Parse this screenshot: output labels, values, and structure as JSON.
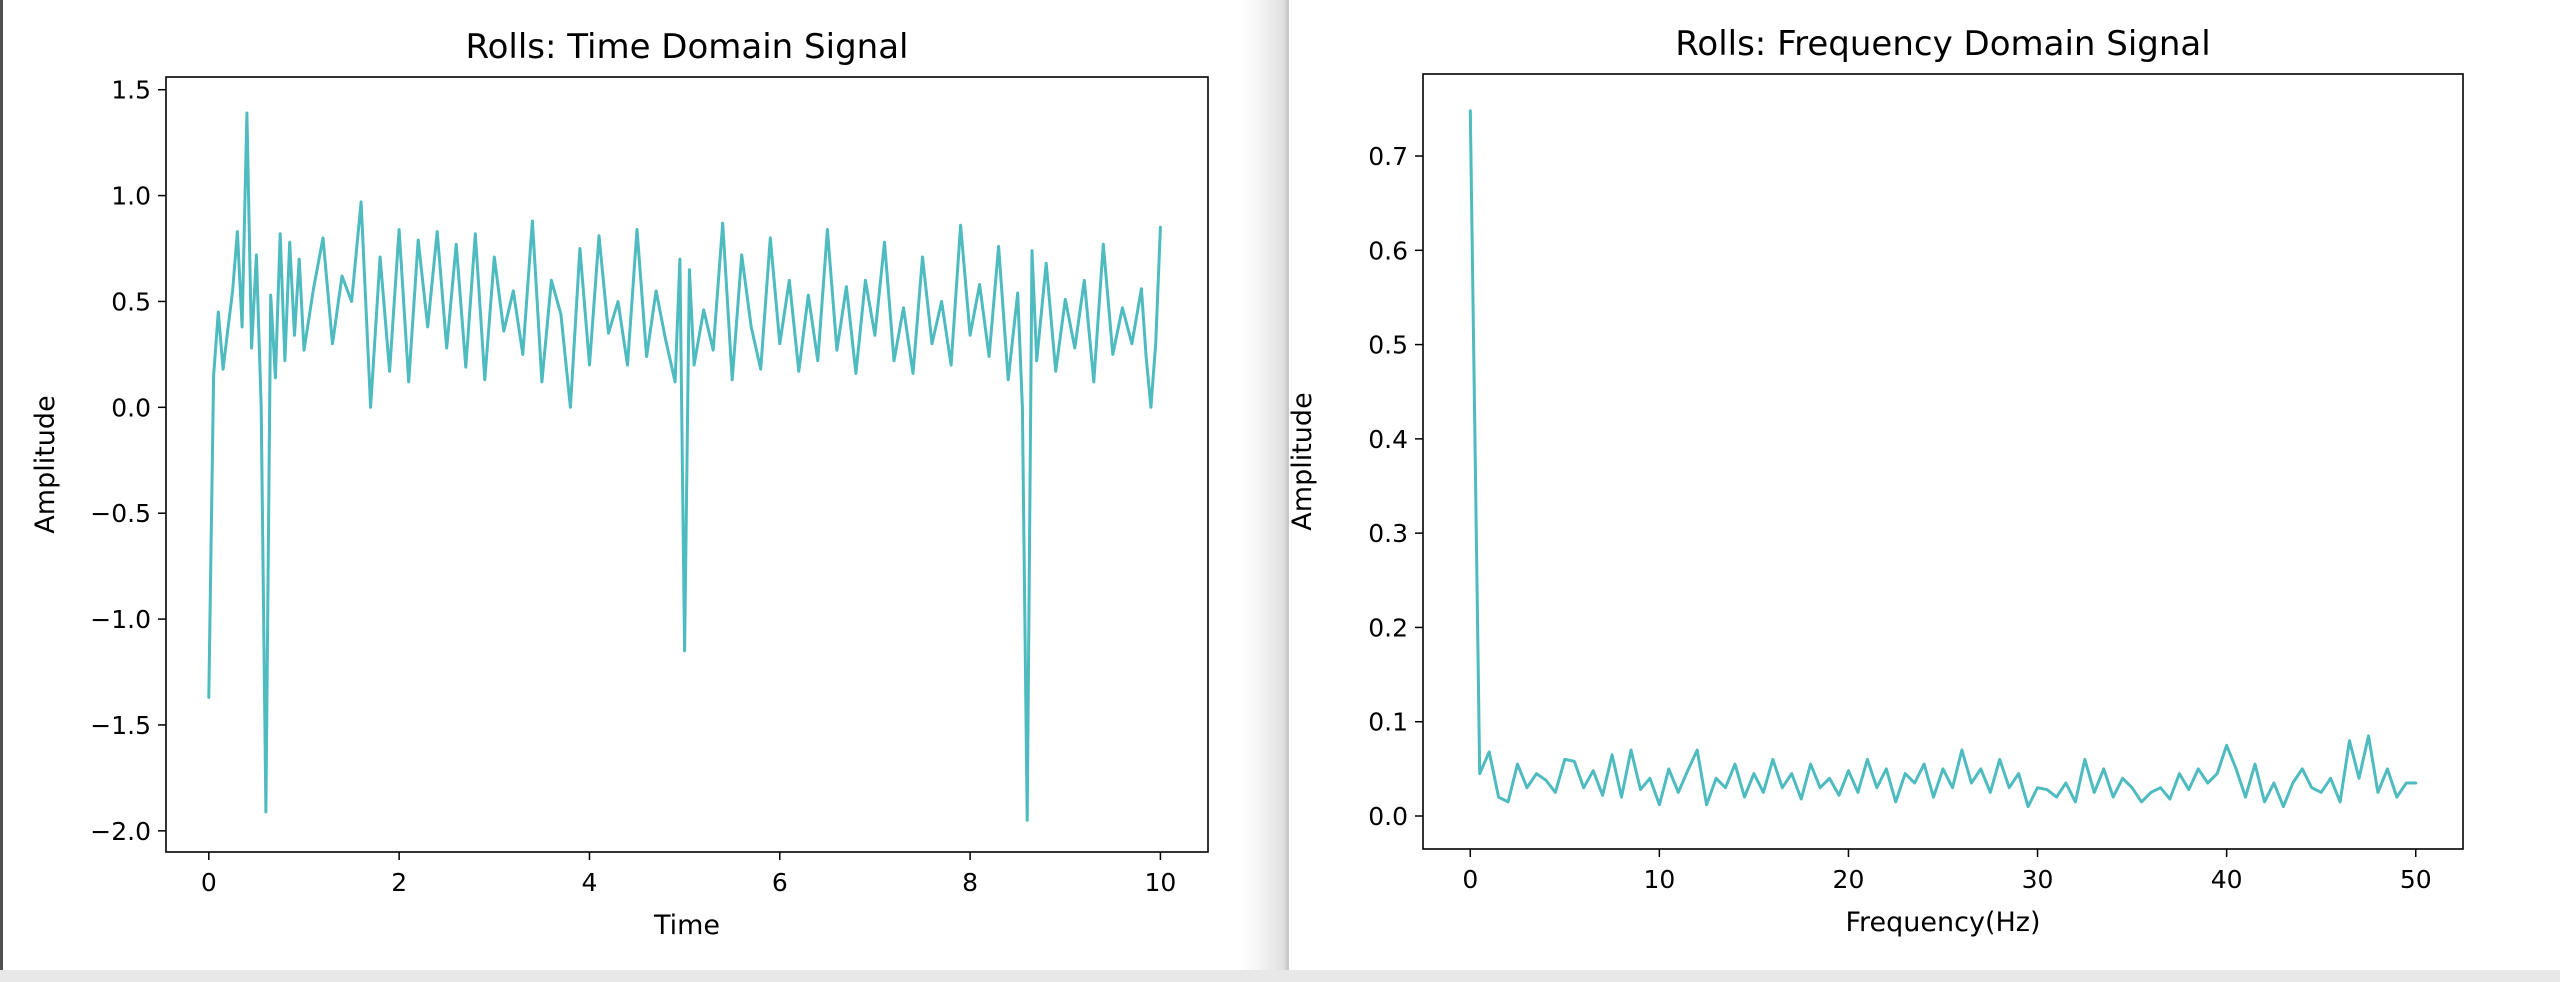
{
  "chart_data": [
    {
      "type": "line",
      "title": "Rolls: Time Domain Signal",
      "xlabel": "Time",
      "ylabel": "Amplitude",
      "xlim": [
        -0.45,
        10.5
      ],
      "ylim": [
        -2.1,
        1.56
      ],
      "xticks": [
        0,
        2,
        4,
        6,
        8,
        10
      ],
      "xtick_labels": [
        "0",
        "2",
        "4",
        "6",
        "8",
        "10"
      ],
      "yticks": [
        1.5,
        1.0,
        0.5,
        0.0,
        -0.5,
        -1.0,
        -1.5,
        -2.0
      ],
      "ytick_labels": [
        "1.5",
        "1.0",
        "0.5",
        "0.0",
        "−0.5",
        "−1.0",
        "−1.5",
        "−2.0"
      ],
      "color": "#4dbbbf",
      "grid": false,
      "series": [
        {
          "x": [
            0.0,
            0.05,
            0.1,
            0.15,
            0.2,
            0.25,
            0.3,
            0.35,
            0.4,
            0.45,
            0.5,
            0.55,
            0.6,
            0.65,
            0.7,
            0.75,
            0.8,
            0.85,
            0.9,
            0.95,
            1.0,
            1.1,
            1.2,
            1.3,
            1.4,
            1.5,
            1.6,
            1.7,
            1.8,
            1.9,
            2.0,
            2.1,
            2.2,
            2.3,
            2.4,
            2.5,
            2.6,
            2.7,
            2.8,
            2.9,
            3.0,
            3.1,
            3.2,
            3.3,
            3.4,
            3.5,
            3.6,
            3.7,
            3.8,
            3.9,
            4.0,
            4.1,
            4.2,
            4.3,
            4.4,
            4.5,
            4.6,
            4.7,
            4.8,
            4.9,
            4.95,
            5.0,
            5.05,
            5.1,
            5.2,
            5.3,
            5.4,
            5.5,
            5.6,
            5.7,
            5.8,
            5.9,
            6.0,
            6.1,
            6.2,
            6.3,
            6.4,
            6.5,
            6.6,
            6.7,
            6.8,
            6.9,
            7.0,
            7.1,
            7.2,
            7.3,
            7.4,
            7.5,
            7.6,
            7.7,
            7.8,
            7.9,
            8.0,
            8.1,
            8.2,
            8.3,
            8.4,
            8.5,
            8.55,
            8.6,
            8.65,
            8.7,
            8.8,
            8.9,
            9.0,
            9.1,
            9.2,
            9.3,
            9.4,
            9.5,
            9.6,
            9.7,
            9.8,
            9.85,
            9.9,
            9.95,
            10.0
          ],
          "y": [
            -1.37,
            0.15,
            0.45,
            0.18,
            0.37,
            0.55,
            0.83,
            0.38,
            1.39,
            0.28,
            0.72,
            0.0,
            -1.91,
            0.53,
            0.14,
            0.82,
            0.22,
            0.78,
            0.34,
            0.7,
            0.27,
            0.56,
            0.8,
            0.3,
            0.62,
            0.5,
            0.97,
            0.0,
            0.71,
            0.17,
            0.84,
            0.12,
            0.79,
            0.38,
            0.83,
            0.28,
            0.77,
            0.19,
            0.82,
            0.13,
            0.71,
            0.36,
            0.55,
            0.25,
            0.88,
            0.12,
            0.6,
            0.44,
            0.0,
            0.75,
            0.2,
            0.81,
            0.35,
            0.5,
            0.2,
            0.84,
            0.24,
            0.55,
            0.32,
            0.12,
            0.7,
            -1.15,
            0.65,
            0.2,
            0.46,
            0.27,
            0.87,
            0.13,
            0.72,
            0.38,
            0.18,
            0.8,
            0.3,
            0.6,
            0.17,
            0.53,
            0.22,
            0.84,
            0.27,
            0.57,
            0.16,
            0.6,
            0.34,
            0.78,
            0.22,
            0.47,
            0.16,
            0.71,
            0.3,
            0.5,
            0.2,
            0.86,
            0.34,
            0.58,
            0.24,
            0.76,
            0.13,
            0.54,
            0.0,
            -1.95,
            0.74,
            0.22,
            0.68,
            0.17,
            0.51,
            0.28,
            0.6,
            0.12,
            0.77,
            0.25,
            0.47,
            0.3,
            0.56,
            0.24,
            0.0,
            0.3,
            0.85
          ]
        }
      ]
    },
    {
      "type": "line",
      "title": "Rolls: Frequency Domain Signal",
      "xlabel": "Frequency(Hz)",
      "ylabel": "Amplitude",
      "xlim": [
        -2.5,
        52.5
      ],
      "ylim": [
        -0.035,
        0.787
      ],
      "xticks": [
        0,
        10,
        20,
        30,
        40,
        50
      ],
      "xtick_labels": [
        "0",
        "10",
        "20",
        "30",
        "40",
        "50"
      ],
      "yticks": [
        0.7,
        0.6,
        0.5,
        0.4,
        0.3,
        0.2,
        0.1,
        0.0
      ],
      "ytick_labels": [
        "0.7",
        "0.6",
        "0.5",
        "0.4",
        "0.3",
        "0.2",
        "0.1",
        "0.0"
      ],
      "color": "#4dbbbf",
      "grid": false,
      "series": [
        {
          "x": [
            0.0,
            0.5,
            1.0,
            1.5,
            2.0,
            2.5,
            3.0,
            3.5,
            4.0,
            4.5,
            5.0,
            5.5,
            6.0,
            6.5,
            7.0,
            7.5,
            8.0,
            8.5,
            9.0,
            9.5,
            10.0,
            10.5,
            11.0,
            11.5,
            12.0,
            12.5,
            13.0,
            13.5,
            14.0,
            14.5,
            15.0,
            15.5,
            16.0,
            16.5,
            17.0,
            17.5,
            18.0,
            18.5,
            19.0,
            19.5,
            20.0,
            20.5,
            21.0,
            21.5,
            22.0,
            22.5,
            23.0,
            23.5,
            24.0,
            24.5,
            25.0,
            25.5,
            26.0,
            26.5,
            27.0,
            27.5,
            28.0,
            28.5,
            29.0,
            29.5,
            30.0,
            30.5,
            31.0,
            31.5,
            32.0,
            32.5,
            33.0,
            33.5,
            34.0,
            34.5,
            35.0,
            35.5,
            36.0,
            36.5,
            37.0,
            37.5,
            38.0,
            38.5,
            39.0,
            39.5,
            40.0,
            40.5,
            41.0,
            41.5,
            42.0,
            42.5,
            43.0,
            43.5,
            44.0,
            44.5,
            45.0,
            45.5,
            46.0,
            46.5,
            47.0,
            47.5,
            48.0,
            48.5,
            49.0,
            49.5,
            50.0
          ],
          "y": [
            0.748,
            0.045,
            0.068,
            0.02,
            0.015,
            0.055,
            0.03,
            0.045,
            0.038,
            0.025,
            0.06,
            0.058,
            0.03,
            0.048,
            0.022,
            0.065,
            0.02,
            0.07,
            0.028,
            0.04,
            0.012,
            0.05,
            0.025,
            0.048,
            0.07,
            0.012,
            0.04,
            0.03,
            0.055,
            0.02,
            0.045,
            0.025,
            0.06,
            0.03,
            0.045,
            0.018,
            0.055,
            0.03,
            0.04,
            0.022,
            0.048,
            0.025,
            0.06,
            0.03,
            0.05,
            0.015,
            0.045,
            0.035,
            0.055,
            0.02,
            0.05,
            0.03,
            0.07,
            0.035,
            0.05,
            0.025,
            0.06,
            0.03,
            0.045,
            0.01,
            0.03,
            0.028,
            0.02,
            0.035,
            0.015,
            0.06,
            0.025,
            0.05,
            0.02,
            0.04,
            0.03,
            0.015,
            0.025,
            0.03,
            0.018,
            0.045,
            0.028,
            0.05,
            0.035,
            0.045,
            0.075,
            0.05,
            0.02,
            0.055,
            0.015,
            0.035,
            0.01,
            0.035,
            0.05,
            0.03,
            0.025,
            0.04,
            0.015,
            0.08,
            0.04,
            0.085,
            0.025,
            0.05,
            0.02,
            0.035,
            0.035
          ]
        }
      ]
    }
  ]
}
